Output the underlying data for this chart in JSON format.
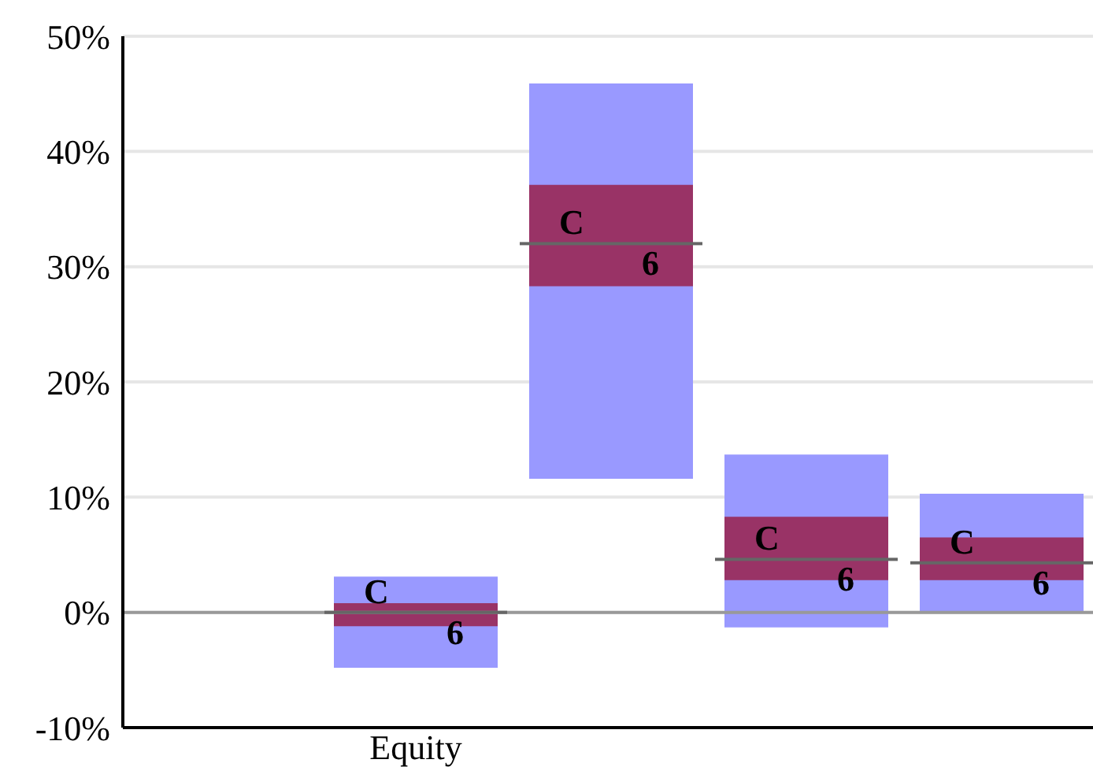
{
  "chart_data": {
    "type": "bar",
    "categories": [
      null,
      "Equity",
      null,
      null,
      null
    ],
    "series": [
      {
        "color": "#9999ff",
        "base": [
          null,
          -4.8,
          11.6,
          -1.3,
          0.1
        ],
        "values": [
          null,
          7.9,
          34.3,
          15.0,
          10.2
        ]
      },
      {
        "color": "#993366",
        "base": [
          null,
          -1.2,
          28.3,
          2.8,
          2.8
        ],
        "values": [
          null,
          2.0,
          8.8,
          5.5,
          3.7
        ]
      }
    ],
    "annotations": [
      "C",
      "6",
      "C",
      "6",
      "C",
      "6",
      "C",
      "6"
    ],
    "ylim": [
      -10,
      50
    ],
    "yticks": [
      {
        "value": -10,
        "label": "-10%"
      },
      {
        "value": 0,
        "label": "0%"
      },
      {
        "value": 10,
        "label": "10%"
      },
      {
        "value": 20,
        "label": "20%"
      },
      {
        "value": 30,
        "label": "30%"
      },
      {
        "value": 40,
        "label": "40%"
      },
      {
        "value": 50,
        "label": "50%"
      }
    ],
    "grid": "y",
    "ref_lines": [
      {
        "axis": "y",
        "value": 0,
        "color": "#999999"
      },
      {
        "axis": "y",
        "value": 0,
        "color": "#666666"
      },
      {
        "axis": "y",
        "value": 32,
        "color": "#666666"
      },
      {
        "axis": "y",
        "value": 4.6,
        "color": "#666666"
      },
      {
        "axis": "y",
        "value": 4.3,
        "color": "#666666"
      }
    ]
  }
}
